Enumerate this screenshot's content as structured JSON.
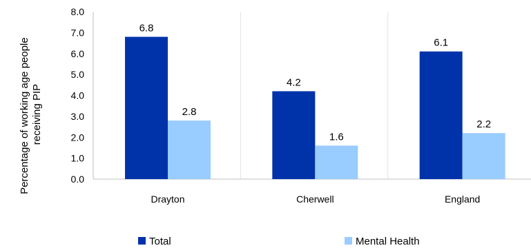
{
  "chart_data": {
    "type": "bar",
    "title": "",
    "xlabel": "",
    "ylabel_lines": [
      "Percentage of working age people",
      "receiving PIP"
    ],
    "categories": [
      "Drayton",
      "Cherwell",
      "England"
    ],
    "series": [
      {
        "name": "Total",
        "values": [
          6.8,
          4.2,
          6.1
        ],
        "color": "#0033aa",
        "labels": [
          "6.8",
          "4.2",
          "6.1"
        ]
      },
      {
        "name": "Mental Health",
        "values": [
          2.8,
          1.6,
          2.2
        ],
        "color": "#99ccff",
        "labels": [
          "2.8",
          "1.6",
          "2.2"
        ]
      }
    ],
    "ylim": [
      0,
      8
    ],
    "yticks": [
      "0.0",
      "1.0",
      "2.0",
      "3.0",
      "4.0",
      "5.0",
      "6.0",
      "7.0",
      "8.0"
    ],
    "grid": "vertical separators between categories",
    "legend": "bottom"
  }
}
